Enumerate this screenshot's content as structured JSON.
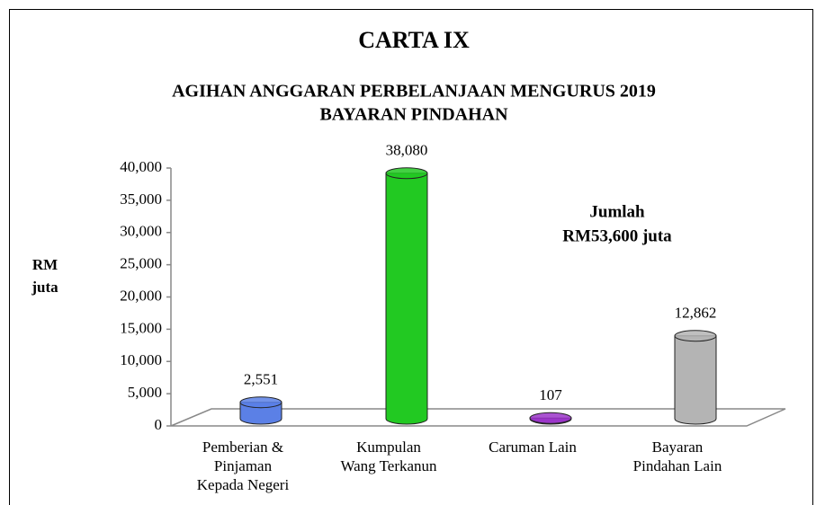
{
  "chart_data": {
    "type": "bar",
    "title": "CARTA IX",
    "subtitle": [
      "AGIHAN ANGGARAN PERBELANJAAN MENGURUS 2019",
      "BAYARAN PINDAHAN"
    ],
    "y_axis_label": [
      "RM",
      "juta"
    ],
    "annotation": [
      "Jumlah",
      "RM53,600 juta"
    ],
    "categories": [
      [
        "Pemberian &",
        "Pinjaman",
        "Kepada Negeri"
      ],
      [
        "Kumpulan",
        "Wang Terkanun"
      ],
      [
        "Caruman Lain"
      ],
      [
        "Bayaran",
        "Pindahan Lain"
      ]
    ],
    "values": [
      2551,
      38080,
      107,
      12862
    ],
    "value_labels": [
      "2,551",
      "38,080",
      "107",
      "12,862"
    ],
    "colors": [
      "#5b80e6",
      "#22c922",
      "#9b35c9",
      "#b4b4b4"
    ],
    "ylim": [
      0,
      40000
    ],
    "yticks": [
      0,
      {
        "value": 5000,
        "label": "5,000"
      },
      {
        "value": 10000,
        "label": "10,000"
      },
      {
        "value": 15000,
        "label": "15,000"
      },
      {
        "value": 20000,
        "label": "20,000"
      },
      {
        "value": 25000,
        "label": "25,000"
      },
      {
        "value": 30000,
        "label": "30,000"
      },
      {
        "value": 35000,
        "label": "35,000"
      },
      {
        "value": 40000,
        "label": "40,000"
      }
    ]
  }
}
